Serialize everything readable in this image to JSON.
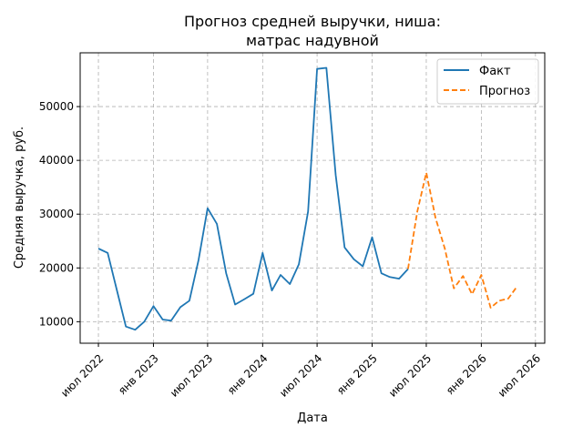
{
  "chart_data": {
    "type": "line",
    "title_line1": "Прогноз средней выручки, ниша:",
    "title_line2": "матрас надувной",
    "xlabel": "Дата",
    "ylabel": "Средняя выручка, руб.",
    "grid": true,
    "legend_position": "top-right",
    "ylim": [
      6000,
      60000
    ],
    "xlim": [
      "2022-05-01",
      "2026-08-01"
    ],
    "y_ticks": [
      10000,
      20000,
      30000,
      40000,
      50000
    ],
    "x_ticks": [
      {
        "date": "2022-07-01",
        "label": "июл 2022"
      },
      {
        "date": "2023-01-01",
        "label": "янв 2023"
      },
      {
        "date": "2023-07-01",
        "label": "июл 2023"
      },
      {
        "date": "2024-01-01",
        "label": "янв 2024"
      },
      {
        "date": "2024-07-01",
        "label": "июл 2024"
      },
      {
        "date": "2025-01-01",
        "label": "янв 2025"
      },
      {
        "date": "2025-07-01",
        "label": "июл 2025"
      },
      {
        "date": "2026-01-01",
        "label": "янв 2026"
      },
      {
        "date": "2026-07-01",
        "label": "июл 2026"
      }
    ],
    "series": [
      {
        "name": "Факт",
        "color": "#1f77b4",
        "style": "solid",
        "x": [
          "2022-07-01",
          "2022-08-01",
          "2022-09-01",
          "2022-10-01",
          "2022-11-01",
          "2022-12-01",
          "2023-01-01",
          "2023-02-01",
          "2023-03-01",
          "2023-04-01",
          "2023-05-01",
          "2023-06-01",
          "2023-07-01",
          "2023-08-01",
          "2023-09-01",
          "2023-10-01",
          "2023-11-01",
          "2023-12-01",
          "2024-01-01",
          "2024-02-01",
          "2024-03-01",
          "2024-04-01",
          "2024-05-01",
          "2024-06-01",
          "2024-07-01",
          "2024-08-01",
          "2024-09-01",
          "2024-10-01",
          "2024-11-01",
          "2024-12-01",
          "2025-01-01",
          "2025-02-01",
          "2025-03-01",
          "2025-04-01",
          "2025-05-01"
        ],
        "y": [
          23600,
          22800,
          15800,
          9100,
          8500,
          10000,
          12900,
          10400,
          10200,
          12700,
          13900,
          21500,
          31100,
          28200,
          19000,
          13200,
          14200,
          15200,
          22800,
          15800,
          18700,
          17000,
          20700,
          30500,
          57000,
          57200,
          37300,
          23800,
          21600,
          20300,
          25700,
          19000,
          18300,
          18000,
          19800
        ]
      },
      {
        "name": "Прогноз",
        "color": "#ff7f0e",
        "style": "dashed",
        "x": [
          "2025-05-01",
          "2025-06-01",
          "2025-07-01",
          "2025-08-01",
          "2025-09-01",
          "2025-10-01",
          "2025-11-01",
          "2025-12-01",
          "2026-01-01",
          "2026-02-01",
          "2026-03-01",
          "2026-04-01",
          "2026-05-01"
        ],
        "y": [
          19800,
          30500,
          37700,
          29300,
          23600,
          16200,
          18500,
          15100,
          18700,
          12600,
          13900,
          14300,
          16600
        ]
      }
    ]
  }
}
